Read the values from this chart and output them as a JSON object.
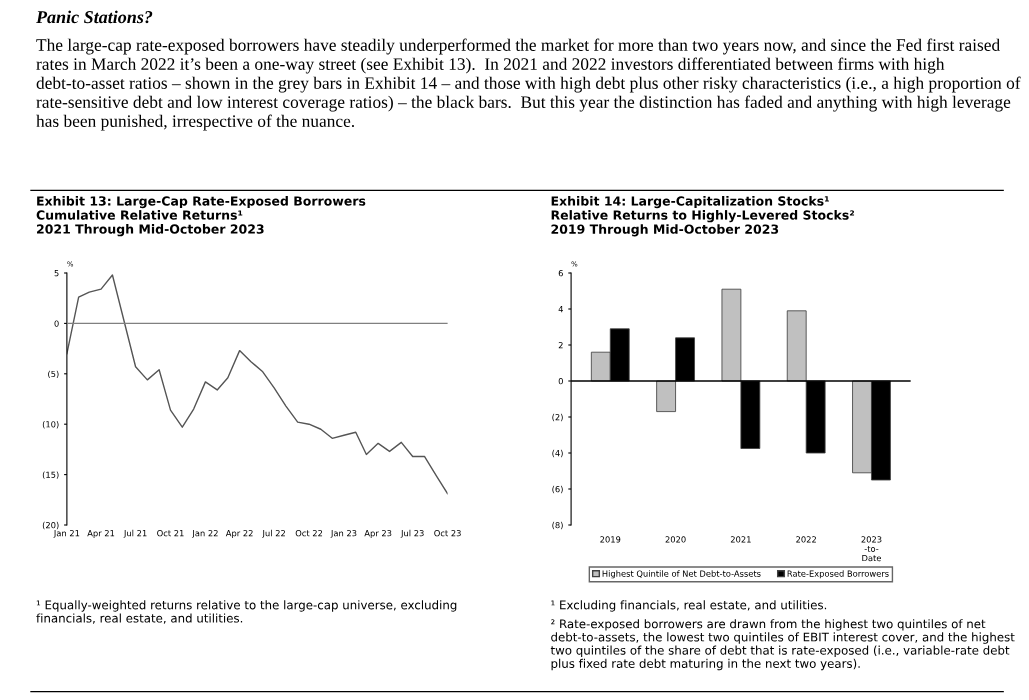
{
  "chart_data": [
    {
      "type": "line",
      "title": "Exhibit 13: Large-Cap Rate-Exposed Borrowers\nCumulative Relative Returns¹\n2021 Through Mid-October 2023",
      "ylabel": "%",
      "x": [
        "2021-01",
        "2021-02",
        "2021-03",
        "2021-04",
        "2021-05",
        "2021-07",
        "2021-08",
        "2021-09",
        "2021-10",
        "2021-11",
        "2021-12",
        "2022-01",
        "2022-02",
        "2022-03",
        "2022-04",
        "2022-05",
        "2022-06",
        "2022-07",
        "2022-08",
        "2022-09",
        "2022-10",
        "2022-11",
        "2022-12",
        "2023-01",
        "2023-02",
        "2023-03",
        "2023-04",
        "2023-05",
        "2023-06",
        "2023-07",
        "2023-08",
        "2023-09",
        "2023-10"
      ],
      "series": [
        {
          "color": "#555555",
          "values": [
            -3.0,
            2.6,
            3.1,
            3.4,
            4.8,
            -4.3,
            -5.6,
            -4.6,
            -8.6,
            -10.3,
            -8.5,
            -5.8,
            -6.6,
            -5.4,
            -2.7,
            -3.8,
            -4.8,
            -6.4,
            -8.2,
            -9.8,
            -10.0,
            -10.5,
            -11.4,
            -11.1,
            -10.8,
            -13.0,
            -11.9,
            -12.7,
            -11.8,
            -13.2,
            -13.2,
            -15.1,
            -16.9
          ]
        }
      ],
      "xlim": [
        "2021-01",
        "2023-10"
      ],
      "xticks": [
        {
          "value": "2021-01",
          "label": "Jan 21"
        },
        {
          "value": "2021-04",
          "label": "Apr 21"
        },
        {
          "value": "2021-07",
          "label": "Jul 21"
        },
        {
          "value": "2021-10",
          "label": "Oct 21"
        },
        {
          "value": "2022-01",
          "label": "Jan 22"
        },
        {
          "value": "2022-04",
          "label": "Apr 22"
        },
        {
          "value": "2022-07",
          "label": "Jul 22"
        },
        {
          "value": "2022-10",
          "label": "Oct 22"
        },
        {
          "value": "2023-01",
          "label": "Jan 23"
        },
        {
          "value": "2023-04",
          "label": "Apr 23"
        },
        {
          "value": "2023-07",
          "label": "Jul 23"
        },
        {
          "value": "2023-10",
          "label": "Oct 23"
        }
      ],
      "ylim": [
        -20,
        5
      ],
      "yticks": [
        5,
        0,
        {
          "value": -5,
          "label": "(5)"
        },
        {
          "value": -10,
          "label": "(10)"
        },
        {
          "value": -15,
          "label": "(15)"
        },
        {
          "value": -20,
          "label": "(20)"
        }
      ],
      "ref_lines": [
        {
          "axis": "y",
          "value": 0,
          "color": "#808080"
        }
      ],
      "grid": false,
      "legend": false,
      "marker": "none",
      "line_style": "solid",
      "annotations": [
        "Panic Stations?",
        "The large-cap rate-exposed borrowers have steadily underperformed the market for more than two years now, and since the Fed first raised rates in March 2022 it’s been a one-way street (see Exhibit 13).  In 2021 and 2022 investors differentiated between firms with high debt-to-asset ratios – shown in the grey bars in Exhibit 14 – and those with high debt plus other risky characteristics (i.e., a high proportion of rate-sensitive debt and low interest coverage ratios) – the black bars.  But this year the distinction has faded and anything with high leverage has been punished, irrespective of the nuance.",
        "¹ Equally-weighted returns relative to the large-cap universe, excluding financials, real estate, and utilities."
      ]
    },
    {
      "type": "bar",
      "title": "Exhibit 14: Large-Capitalization Stocks¹\nRelative Returns to Highly-Levered Stocks²\n2019 Through Mid-October 2023",
      "ylabel": "%",
      "categories": [
        "2019",
        "2020",
        "2021",
        "2022",
        "2023\n-to-\nDate"
      ],
      "series": [
        {
          "name": "Highest Quintile of Net Debt-to-Assets",
          "color": "#c0c0c0",
          "values": [
            1.6,
            -1.7,
            5.1,
            3.9,
            -5.1
          ]
        },
        {
          "name": "Rate-Exposed Borrowers",
          "color": "#000000",
          "values": [
            2.9,
            2.4,
            -3.75,
            -4.0,
            -5.5
          ]
        }
      ],
      "ylim": [
        -8,
        6
      ],
      "yticks": [
        6,
        4,
        2,
        0,
        {
          "value": -2,
          "label": "(2)"
        },
        {
          "value": -4,
          "label": "(4)"
        },
        {
          "value": -6,
          "label": "(6)"
        },
        {
          "value": -8,
          "label": "(8)"
        }
      ],
      "ref_lines": [
        {
          "axis": "y",
          "value": 0,
          "color": "#000000"
        }
      ],
      "grid": false,
      "legend": "bottom",
      "annotations": [
        "¹ Excluding financials, real estate, and utilities.",
        "² Rate-exposed borrowers are drawn from the highest two quintiles of net debt-to-assets, the lowest two quintiles of EBIT interest cover, and the highest two quintiles of the share of debt that is rate-exposed (i.e., variable-rate debt plus fixed rate debt maturing in the next two years)."
      ]
    }
  ]
}
